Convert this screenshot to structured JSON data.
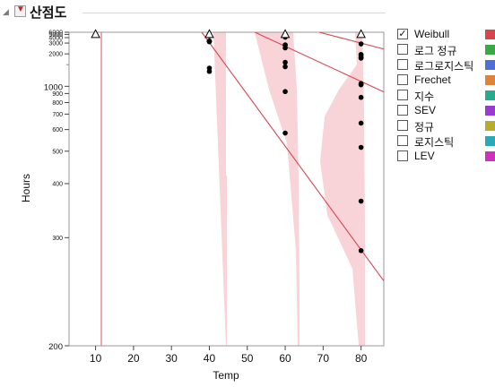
{
  "header": {
    "title": "산점도",
    "collapse_icon": "triangle-down-icon",
    "menu_icon": "red-triangle-menu-icon"
  },
  "legend": {
    "items": [
      {
        "label": "Weibull",
        "checked": true,
        "color": "#d9454f"
      },
      {
        "label": "로그 정규",
        "checked": false,
        "color": "#3aa845"
      },
      {
        "label": "로그로지스틱",
        "checked": false,
        "color": "#4f6fd8"
      },
      {
        "label": "Frechet",
        "checked": false,
        "color": "#e0833a"
      },
      {
        "label": "지수",
        "checked": false,
        "color": "#26ab8e"
      },
      {
        "label": "SEV",
        "checked": false,
        "color": "#9b3ad0"
      },
      {
        "label": "정규",
        "checked": false,
        "color": "#b8ad2a"
      },
      {
        "label": "로지스틱",
        "checked": false,
        "color": "#2aaab8"
      },
      {
        "label": "LEV",
        "checked": false,
        "color": "#d02fc0"
      }
    ]
  },
  "chart_data": {
    "type": "scatter",
    "xlabel": "Temp",
    "ylabel": "Hours",
    "x_ticks": [
      10,
      20,
      30,
      40,
      50,
      60,
      70,
      80
    ],
    "xlim": [
      3,
      86
    ],
    "y_scale": "reciprocal",
    "ylim": [
      200,
      6000
    ],
    "y_major_ticks": [
      200,
      300,
      400,
      500,
      600,
      700,
      800,
      900,
      1000,
      2000,
      3000,
      4000,
      5000,
      6000
    ],
    "y_major_labels": [
      "200",
      "300",
      "400",
      "500",
      "600",
      "700",
      "800",
      "900",
      "1000",
      "2000",
      "3000",
      "4000",
      "5000",
      "6000"
    ],
    "failures": [
      {
        "x": 40,
        "y": 1298
      },
      {
        "x": 40,
        "y": 1390
      },
      {
        "x": 40,
        "y": 3187
      },
      {
        "x": 40,
        "y": 3241
      },
      {
        "x": 40,
        "y": 3261
      },
      {
        "x": 40,
        "y": 3313
      },
      {
        "x": 40,
        "y": 4501
      },
      {
        "x": 40,
        "y": 4568
      },
      {
        "x": 40,
        "y": 4841
      },
      {
        "x": 40,
        "y": 4982
      },
      {
        "x": 60,
        "y": 581
      },
      {
        "x": 60,
        "y": 925
      },
      {
        "x": 60,
        "y": 1432
      },
      {
        "x": 60,
        "y": 1586
      },
      {
        "x": 60,
        "y": 2452
      },
      {
        "x": 60,
        "y": 2734
      },
      {
        "x": 60,
        "y": 2772
      },
      {
        "x": 60,
        "y": 4106
      },
      {
        "x": 60,
        "y": 4674
      },
      {
        "x": 80,
        "y": 283
      },
      {
        "x": 80,
        "y": 361
      },
      {
        "x": 80,
        "y": 515
      },
      {
        "x": 80,
        "y": 638
      },
      {
        "x": 80,
        "y": 854
      },
      {
        "x": 80,
        "y": 1024
      },
      {
        "x": 80,
        "y": 1030
      },
      {
        "x": 80,
        "y": 1045
      },
      {
        "x": 80,
        "y": 1767
      },
      {
        "x": 80,
        "y": 1777
      },
      {
        "x": 80,
        "y": 1856
      },
      {
        "x": 80,
        "y": 1951
      },
      {
        "x": 80,
        "y": 1964
      },
      {
        "x": 80,
        "y": 2884
      }
    ],
    "censored": [
      {
        "x": 10,
        "y": 5000
      },
      {
        "x": 40,
        "y": 5000
      },
      {
        "x": 60,
        "y": 5000
      },
      {
        "x": 80,
        "y": 5000
      }
    ],
    "fit_lines": [
      {
        "points": [
          [
            38,
            6000
          ],
          [
            86,
            250
          ]
        ]
      },
      {
        "points": [
          [
            52,
            6000
          ],
          [
            86,
            920
          ]
        ]
      },
      {
        "points": [
          [
            69,
            6000
          ],
          [
            86,
            2350
          ]
        ]
      }
    ],
    "color": "#d9454f"
  }
}
